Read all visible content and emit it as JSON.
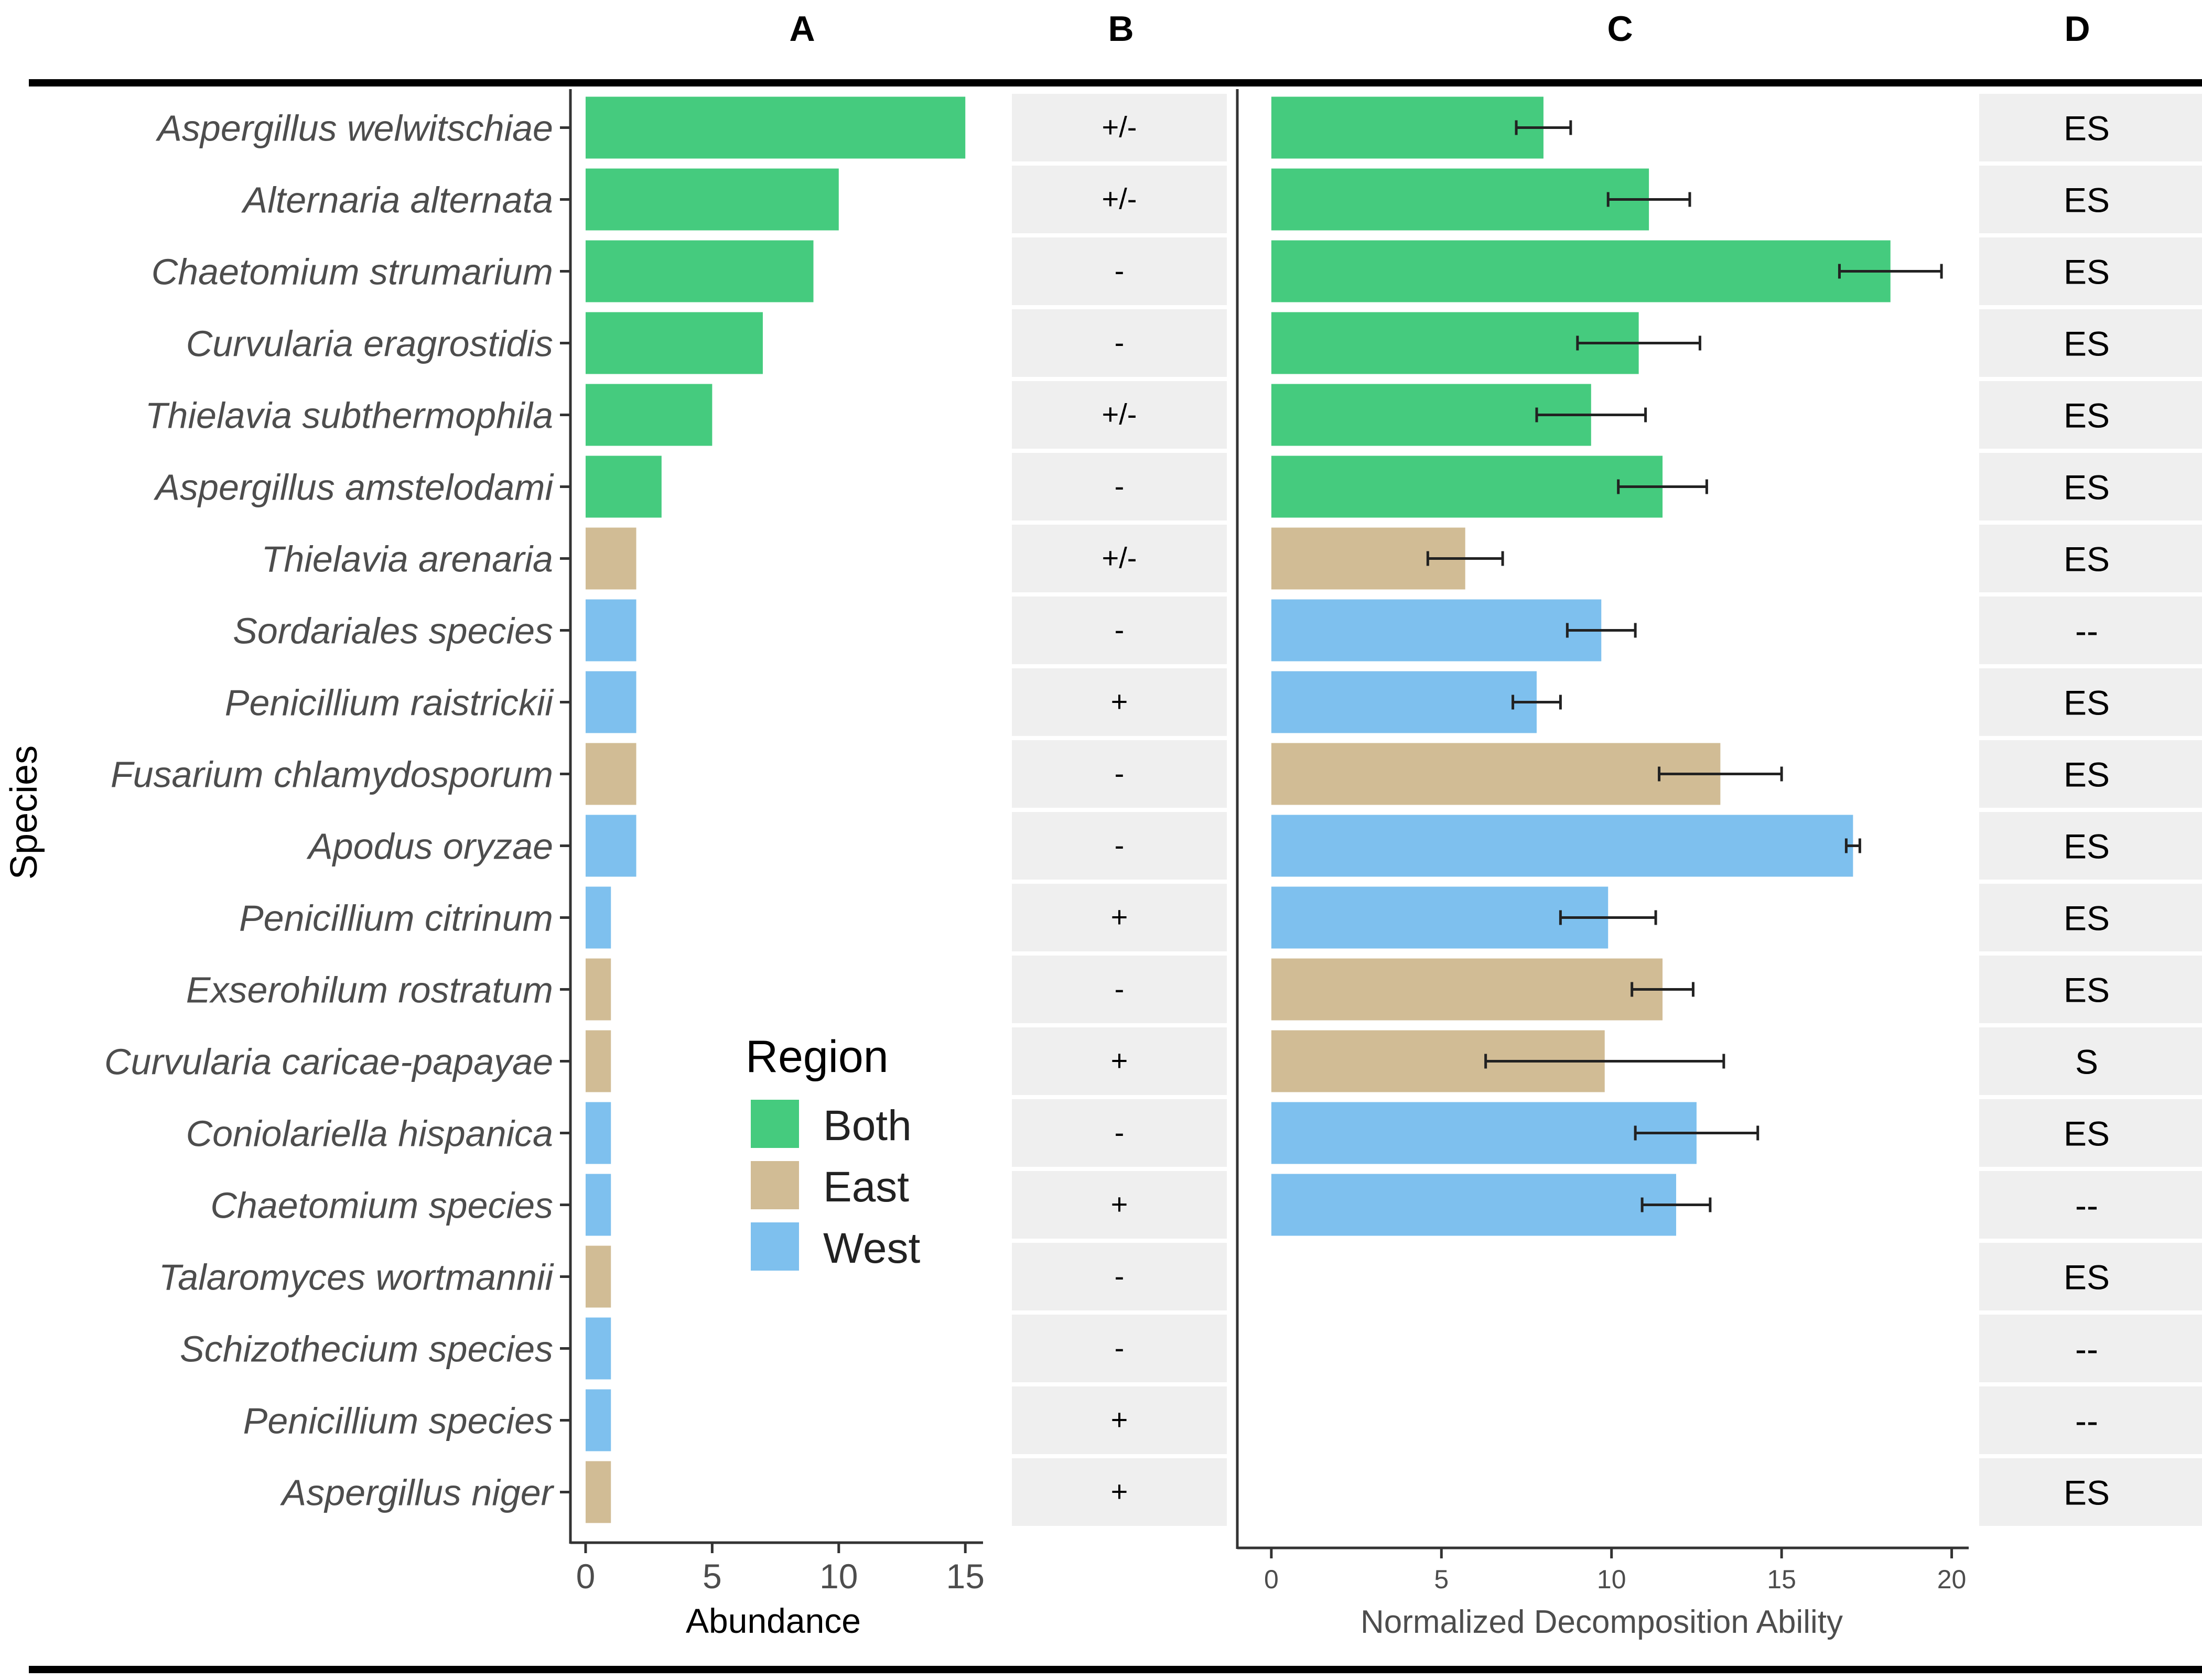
{
  "panel_labels": [
    "A",
    "B",
    "C",
    "D"
  ],
  "y_axis_title": "Species",
  "colors": {
    "Both": "#45CB7E",
    "East": "#D1BC95",
    "West": "#7EC0EE",
    "strip": "#EFEFEF",
    "axis": "#333333",
    "text_gray": "#4D4D4D"
  },
  "species": [
    "Aspergillus welwitschiae",
    "Alternaria alternata",
    "Chaetomium strumarium",
    "Curvularia eragrostidis",
    "Thielavia subthermophila",
    "Aspergillus amstelodami",
    "Thielavia arenaria",
    "Sordariales species",
    "Penicillium raistrickii",
    "Fusarium chlamydosporum",
    "Apodus oryzae",
    "Penicillium citrinum",
    "Exserohilum rostratum",
    "Curvularia caricae-papayae",
    "Coniolariella hispanica",
    "Chaetomium species",
    "Talaromyces wortmannii",
    "Schizothecium species",
    "Penicillium species",
    "Aspergillus niger"
  ],
  "legend": {
    "title": "Region",
    "entries": [
      "Both",
      "East",
      "West"
    ]
  },
  "chart_data": [
    {
      "panel": "A",
      "type": "bar",
      "orientation": "horizontal",
      "categories_ref": "species",
      "regions": [
        "Both",
        "Both",
        "Both",
        "Both",
        "Both",
        "Both",
        "East",
        "West",
        "West",
        "East",
        "West",
        "West",
        "East",
        "East",
        "West",
        "West",
        "East",
        "West",
        "West",
        "East"
      ],
      "values": [
        15,
        10,
        9,
        7,
        5,
        3,
        2,
        2,
        2,
        2,
        2,
        1,
        1,
        1,
        1,
        1,
        1,
        1,
        1,
        1
      ],
      "xlabel": "Abundance",
      "xlim": [
        -0.6,
        15.7
      ],
      "xticks": [
        0,
        5,
        10,
        15
      ],
      "tick_labels": [
        "0",
        "5",
        "10",
        "15"
      ]
    },
    {
      "panel": "B",
      "type": "table",
      "values": [
        "+/-",
        "+/-",
        "-",
        "-",
        "+/-",
        "-",
        "+/-",
        "-",
        "+",
        "-",
        "-",
        "+",
        "-",
        "+",
        "-",
        "+",
        "-",
        "-",
        "+",
        "+"
      ]
    },
    {
      "panel": "C",
      "type": "bar",
      "orientation": "horizontal",
      "categories_ref": "species",
      "xlabel": "Normalized Decomposition Ability",
      "xlim": [
        -1,
        20.5
      ],
      "xticks": [
        0,
        5,
        10,
        15,
        20
      ],
      "tick_labels": [
        "0",
        "5",
        "10",
        "15",
        "20"
      ],
      "values": [
        8.0,
        11.1,
        18.2,
        10.8,
        9.4,
        11.5,
        5.7,
        9.7,
        7.8,
        13.2,
        17.1,
        9.9,
        11.5,
        9.8,
        12.5,
        11.9,
        null,
        null,
        null,
        null
      ],
      "error": [
        0.8,
        1.2,
        1.5,
        1.8,
        1.6,
        1.3,
        1.1,
        1.0,
        0.7,
        1.8,
        0.2,
        1.4,
        0.9,
        3.5,
        1.8,
        1.0,
        null,
        null,
        null,
        null
      ]
    },
    {
      "panel": "D",
      "type": "table",
      "values": [
        "ES",
        "ES",
        "ES",
        "ES",
        "ES",
        "ES",
        "ES",
        "--",
        "ES",
        "ES",
        "ES",
        "ES",
        "ES",
        "S",
        "ES",
        "--",
        "ES",
        "--",
        "--",
        "ES"
      ]
    }
  ]
}
